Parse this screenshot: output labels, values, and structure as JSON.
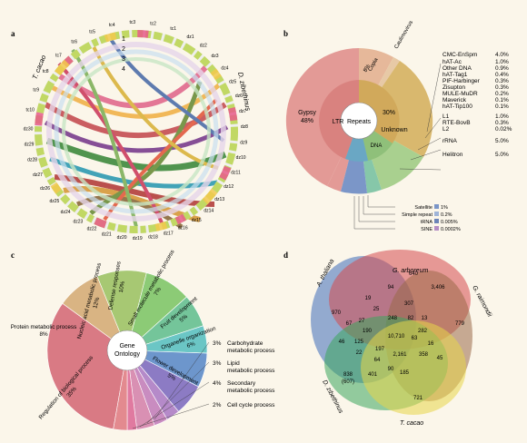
{
  "panels": {
    "a": {
      "letter": "a",
      "species_left": "T. cacao",
      "species_right": "D. zibethinus",
      "ring_labels": [
        "1",
        "2",
        "3",
        "4"
      ],
      "tc_chroms": [
        "tc1",
        "tc2",
        "tc3",
        "tc4",
        "tc5",
        "tc6",
        "tc7",
        "tc8",
        "tc9",
        "tc10"
      ],
      "dz_chroms": [
        "dz1",
        "dz2",
        "dz3",
        "dz4",
        "dz5",
        "dz6",
        "dz7",
        "dz8",
        "dz9",
        "dz10",
        "dz11",
        "dz12",
        "dz13",
        "dz14",
        "dz15",
        "dz16",
        "dz17",
        "dz18",
        "dz19",
        "dz20",
        "dz21",
        "dz22",
        "dz23",
        "dz24",
        "dz25",
        "dz26",
        "dz27",
        "dz28",
        "dz29",
        "dz30"
      ]
    },
    "b": {
      "letter": "b",
      "center": "Repeats",
      "inner": [
        {
          "label": "LTR",
          "color": "#d9827f"
        },
        {
          "label": "30%",
          "color": "#d9b86e"
        },
        {
          "label": "Unknown",
          "color": "#d9b86e"
        },
        {
          "label": "DNA",
          "color": "#8fc07a"
        }
      ],
      "outer": [
        {
          "label": "Gypsy",
          "value": "48%",
          "color": "#e39a96"
        },
        {
          "label": "Copia",
          "value": "8%",
          "color": "#e6b89a"
        },
        {
          "label": "Caulimovirus",
          "color": "#e7c9a6"
        }
      ],
      "right_list": [
        {
          "name": "CMC-EnSpm",
          "value": "4.0%"
        },
        {
          "name": "hAT-Ac",
          "value": "1.0%"
        },
        {
          "name": "Other DNA",
          "value": "0.9%"
        },
        {
          "name": "hAT-Tag1",
          "value": "0.4%"
        },
        {
          "name": "PIF-Harbinger",
          "value": "0.3%"
        },
        {
          "name": "Zisupton",
          "value": "0.3%"
        },
        {
          "name": "MULE-MuDR",
          "value": "0.2%"
        },
        {
          "name": "Maverick",
          "value": "0.1%"
        },
        {
          "name": "hAT-Tip100",
          "value": "0.1%"
        },
        {
          "name": "L1",
          "value": "1.0%"
        },
        {
          "name": "RTE-BovB",
          "value": "0.3%"
        },
        {
          "name": "L2",
          "value": "0.02%"
        },
        {
          "name": "rRNA",
          "value": "5.0%"
        },
        {
          "name": "Helitron",
          "value": "5.0%"
        }
      ],
      "bottom_list": [
        {
          "name": "Satellite",
          "value": "1%",
          "color": "#7b96c8"
        },
        {
          "name": "Simple repeat",
          "value": "0.2%",
          "color": "#9fb4d8"
        },
        {
          "name": "tRNA",
          "value": "0.005%",
          "color": "#6c84b8"
        },
        {
          "name": "SINE",
          "value": "0.0002%",
          "color": "#b48dc4"
        }
      ]
    },
    "c": {
      "letter": "c",
      "center_line1": "Gene",
      "center_line2": "Ontology",
      "slices": [
        {
          "label": "Regulation of biological process",
          "value": "35%",
          "color": "#d97a84"
        },
        {
          "label": "Protein metabolic process",
          "value": "8%",
          "color": "#d9b483"
        },
        {
          "label": "Nucleic acid metabolic process",
          "value": "12%",
          "color": "#a7c873"
        },
        {
          "label": "Defense responses",
          "value": "10%",
          "color": "#8ccb76"
        },
        {
          "label": "Small molecule metabolic process",
          "value": "7%",
          "color": "#74c59a"
        },
        {
          "label": "Fruit development",
          "value": "5%",
          "color": "#6bc6c5"
        },
        {
          "label": "Organelle organization",
          "value": "6%",
          "color": "#6d96cc"
        },
        {
          "label": "Flower development",
          "value": "5%",
          "color": "#8c7bc4"
        }
      ],
      "callouts": [
        {
          "value": "3%",
          "line1": "Carbohydrate",
          "line2": "metabolic process"
        },
        {
          "value": "3%",
          "line1": "Lipid",
          "line2": "metabolic process"
        },
        {
          "value": "4%",
          "line1": "Secondary",
          "line2": "metabolic process"
        },
        {
          "value": "2%",
          "line1": "Cell cycle process",
          "line2": ""
        }
      ]
    },
    "d": {
      "letter": "d",
      "species": [
        "A. thaliana",
        "G. arboreum",
        "G. raimondii",
        "D. zibethinus",
        "T. cacao"
      ],
      "numbers": [
        "970",
        "640",
        "779",
        "838",
        "(607)",
        "721",
        "19",
        "94",
        "307",
        "3,406",
        "67",
        "27",
        "25",
        "248",
        "82",
        "13",
        "190",
        "10,710",
        "282",
        "16",
        "46",
        "125",
        "197",
        "2,161",
        "358",
        "45",
        "22",
        "64",
        "401",
        "90",
        "185"
      ],
      "number_extra": [
        "63"
      ]
    }
  }
}
